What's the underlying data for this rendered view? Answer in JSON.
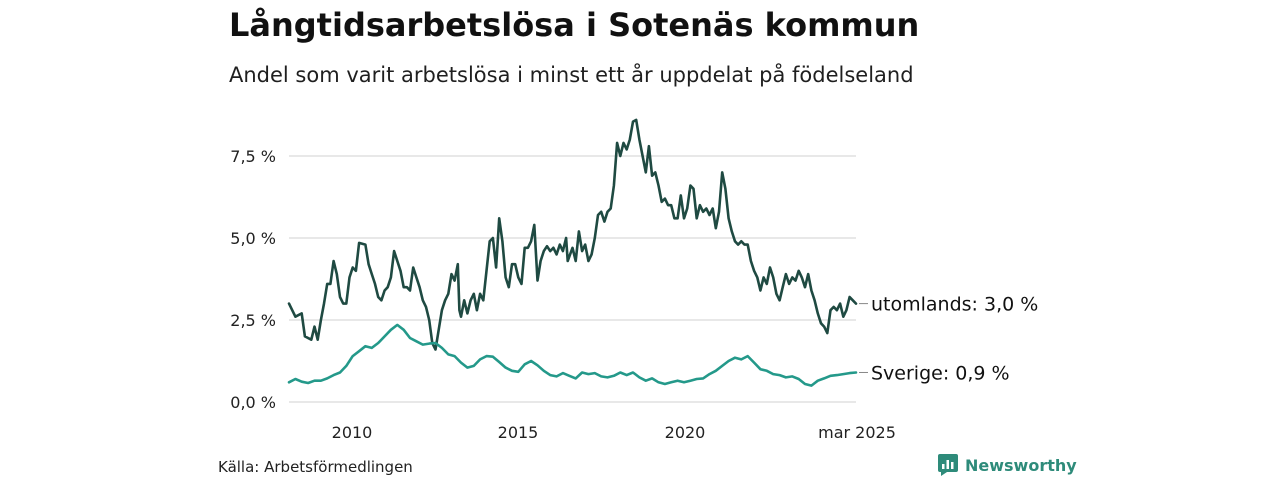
{
  "title": "Långtidsarbetslösa i Sotenäs kommun",
  "subtitle": "Andel som varit arbetslösa i minst ett år uppdelat på födelseland",
  "source": "Källa: Arbetsförmedlingen",
  "brand": "Newsworthy",
  "brand_icon": "newsworthy-bar-chart-icon",
  "chart_data": {
    "type": "line",
    "y_ticks": [
      {
        "value": 0,
        "label": "0,0 %"
      },
      {
        "value": 2.5,
        "label": "2,5 %"
      },
      {
        "value": 5,
        "label": "5,0 %"
      },
      {
        "value": 7.5,
        "label": "7,5 %"
      }
    ],
    "x_ticks": [
      {
        "value": 2010,
        "label": "2010"
      },
      {
        "value": 2015,
        "label": "2015"
      },
      {
        "value": 2020,
        "label": "2020"
      },
      {
        "value": 2025.2,
        "label": "mar 2025"
      }
    ],
    "xlim": [
      2008.0,
      2025.2
    ],
    "ylim": [
      0,
      8.6
    ],
    "grid": true,
    "series": [
      {
        "name": "utomlands",
        "end_label": "utomlands: 3,0 %",
        "color": "#1f4a42",
        "points": [
          [
            2008.0,
            3.0
          ],
          [
            2008.2,
            2.6
          ],
          [
            2008.4,
            2.7
          ],
          [
            2008.5,
            2.0
          ],
          [
            2008.7,
            1.9
          ],
          [
            2008.8,
            2.3
          ],
          [
            2008.9,
            1.9
          ],
          [
            2009.0,
            2.5
          ],
          [
            2009.1,
            3.0
          ],
          [
            2009.2,
            3.6
          ],
          [
            2009.3,
            3.6
          ],
          [
            2009.4,
            4.3
          ],
          [
            2009.5,
            3.9
          ],
          [
            2009.6,
            3.2
          ],
          [
            2009.7,
            3.0
          ],
          [
            2009.8,
            3.0
          ],
          [
            2009.9,
            3.8
          ],
          [
            2010.0,
            4.1
          ],
          [
            2010.1,
            4.0
          ],
          [
            2010.2,
            4.85
          ],
          [
            2010.4,
            4.8
          ],
          [
            2010.5,
            4.2
          ],
          [
            2010.6,
            3.9
          ],
          [
            2010.7,
            3.6
          ],
          [
            2010.8,
            3.2
          ],
          [
            2010.9,
            3.1
          ],
          [
            2011.0,
            3.4
          ],
          [
            2011.1,
            3.5
          ],
          [
            2011.2,
            3.8
          ],
          [
            2011.3,
            4.6
          ],
          [
            2011.4,
            4.3
          ],
          [
            2011.5,
            4.0
          ],
          [
            2011.6,
            3.5
          ],
          [
            2011.7,
            3.5
          ],
          [
            2011.8,
            3.4
          ],
          [
            2011.9,
            4.1
          ],
          [
            2012.0,
            3.8
          ],
          [
            2012.1,
            3.5
          ],
          [
            2012.2,
            3.1
          ],
          [
            2012.3,
            2.9
          ],
          [
            2012.4,
            2.5
          ],
          [
            2012.5,
            1.8
          ],
          [
            2012.6,
            1.6
          ],
          [
            2012.7,
            2.2
          ],
          [
            2012.8,
            2.8
          ],
          [
            2012.9,
            3.1
          ],
          [
            2013.0,
            3.3
          ],
          [
            2013.1,
            3.9
          ],
          [
            2013.2,
            3.7
          ],
          [
            2013.3,
            4.2
          ],
          [
            2013.35,
            2.8
          ],
          [
            2013.4,
            2.6
          ],
          [
            2013.5,
            3.1
          ],
          [
            2013.6,
            2.7
          ],
          [
            2013.7,
            3.1
          ],
          [
            2013.8,
            3.3
          ],
          [
            2013.9,
            2.8
          ],
          [
            2014.0,
            3.3
          ],
          [
            2014.1,
            3.1
          ],
          [
            2014.2,
            4.0
          ],
          [
            2014.3,
            4.9
          ],
          [
            2014.4,
            5.0
          ],
          [
            2014.5,
            4.1
          ],
          [
            2014.6,
            5.6
          ],
          [
            2014.7,
            4.9
          ],
          [
            2014.8,
            3.8
          ],
          [
            2014.9,
            3.5
          ],
          [
            2015.0,
            4.2
          ],
          [
            2015.1,
            4.2
          ],
          [
            2015.2,
            3.8
          ],
          [
            2015.3,
            3.6
          ],
          [
            2015.4,
            4.7
          ],
          [
            2015.5,
            4.7
          ],
          [
            2015.6,
            4.9
          ],
          [
            2015.7,
            5.4
          ],
          [
            2015.8,
            3.7
          ],
          [
            2015.9,
            4.3
          ],
          [
            2016.0,
            4.6
          ],
          [
            2016.1,
            4.75
          ],
          [
            2016.2,
            4.6
          ],
          [
            2016.3,
            4.7
          ],
          [
            2016.4,
            4.5
          ],
          [
            2016.5,
            4.8
          ],
          [
            2016.6,
            4.6
          ],
          [
            2016.7,
            5.0
          ],
          [
            2016.75,
            4.3
          ],
          [
            2016.9,
            4.7
          ],
          [
            2017.0,
            4.3
          ],
          [
            2017.1,
            5.2
          ],
          [
            2017.2,
            4.6
          ],
          [
            2017.3,
            4.8
          ],
          [
            2017.4,
            4.3
          ],
          [
            2017.5,
            4.5
          ],
          [
            2017.6,
            5.0
          ],
          [
            2017.7,
            5.7
          ],
          [
            2017.8,
            5.8
          ],
          [
            2017.9,
            5.5
          ],
          [
            2018.0,
            5.8
          ],
          [
            2018.1,
            5.9
          ],
          [
            2018.2,
            6.6
          ],
          [
            2018.3,
            7.9
          ],
          [
            2018.4,
            7.5
          ],
          [
            2018.5,
            7.9
          ],
          [
            2018.6,
            7.7
          ],
          [
            2018.7,
            8.0
          ],
          [
            2018.8,
            8.55
          ],
          [
            2018.9,
            8.6
          ],
          [
            2019.0,
            8.0
          ],
          [
            2019.1,
            7.5
          ],
          [
            2019.2,
            7.0
          ],
          [
            2019.3,
            7.8
          ],
          [
            2019.4,
            6.9
          ],
          [
            2019.5,
            7.0
          ],
          [
            2019.6,
            6.6
          ],
          [
            2019.7,
            6.1
          ],
          [
            2019.8,
            6.2
          ],
          [
            2019.9,
            6.0
          ],
          [
            2020.0,
            6.0
          ],
          [
            2020.1,
            5.6
          ],
          [
            2020.2,
            5.6
          ],
          [
            2020.3,
            6.3
          ],
          [
            2020.4,
            5.6
          ],
          [
            2020.5,
            5.9
          ],
          [
            2020.6,
            6.6
          ],
          [
            2020.7,
            6.5
          ],
          [
            2020.8,
            5.6
          ],
          [
            2020.9,
            6.0
          ],
          [
            2021.0,
            5.8
          ],
          [
            2021.1,
            5.9
          ],
          [
            2021.2,
            5.7
          ],
          [
            2021.3,
            5.9
          ],
          [
            2021.4,
            5.3
          ],
          [
            2021.5,
            5.8
          ],
          [
            2021.6,
            7.0
          ],
          [
            2021.7,
            6.5
          ],
          [
            2021.8,
            5.6
          ],
          [
            2021.9,
            5.2
          ],
          [
            2022.0,
            4.9
          ],
          [
            2022.1,
            4.8
          ],
          [
            2022.2,
            4.9
          ],
          [
            2022.3,
            4.8
          ],
          [
            2022.4,
            4.8
          ],
          [
            2022.5,
            4.3
          ],
          [
            2022.6,
            4.0
          ],
          [
            2022.7,
            3.8
          ],
          [
            2022.8,
            3.4
          ],
          [
            2022.9,
            3.8
          ],
          [
            2023.0,
            3.6
          ],
          [
            2023.1,
            4.1
          ],
          [
            2023.2,
            3.8
          ],
          [
            2023.3,
            3.3
          ],
          [
            2023.4,
            3.1
          ],
          [
            2023.5,
            3.5
          ],
          [
            2023.6,
            3.9
          ],
          [
            2023.7,
            3.6
          ],
          [
            2023.8,
            3.8
          ],
          [
            2023.9,
            3.7
          ],
          [
            2024.0,
            4.0
          ],
          [
            2024.1,
            3.8
          ],
          [
            2024.2,
            3.5
          ],
          [
            2024.3,
            3.9
          ],
          [
            2024.4,
            3.4
          ],
          [
            2024.5,
            3.1
          ],
          [
            2024.6,
            2.7
          ],
          [
            2024.7,
            2.4
          ],
          [
            2024.8,
            2.3
          ],
          [
            2024.9,
            2.1
          ],
          [
            2025.0,
            2.8
          ],
          [
            2025.1,
            2.9
          ],
          [
            2025.2,
            2.8
          ],
          [
            2025.3,
            3.0
          ],
          [
            2025.4,
            2.6
          ],
          [
            2025.5,
            2.8
          ],
          [
            2025.6,
            3.2
          ],
          [
            2025.7,
            3.1
          ],
          [
            2025.8,
            3.0
          ]
        ]
      },
      {
        "name": "Sverige",
        "end_label": "Sverige: 0,9 %",
        "color": "#24998a",
        "points": [
          [
            2008.0,
            0.6
          ],
          [
            2008.2,
            0.7
          ],
          [
            2008.4,
            0.62
          ],
          [
            2008.6,
            0.58
          ],
          [
            2008.8,
            0.65
          ],
          [
            2009.0,
            0.65
          ],
          [
            2009.2,
            0.72
          ],
          [
            2009.4,
            0.82
          ],
          [
            2009.6,
            0.9
          ],
          [
            2009.8,
            1.1
          ],
          [
            2010.0,
            1.4
          ],
          [
            2010.2,
            1.55
          ],
          [
            2010.4,
            1.7
          ],
          [
            2010.6,
            1.65
          ],
          [
            2010.8,
            1.8
          ],
          [
            2011.0,
            2.0
          ],
          [
            2011.2,
            2.2
          ],
          [
            2011.4,
            2.35
          ],
          [
            2011.6,
            2.2
          ],
          [
            2011.8,
            1.95
          ],
          [
            2012.0,
            1.85
          ],
          [
            2012.2,
            1.75
          ],
          [
            2012.4,
            1.78
          ],
          [
            2012.6,
            1.8
          ],
          [
            2012.8,
            1.65
          ],
          [
            2013.0,
            1.45
          ],
          [
            2013.2,
            1.4
          ],
          [
            2013.4,
            1.2
          ],
          [
            2013.6,
            1.05
          ],
          [
            2013.8,
            1.1
          ],
          [
            2014.0,
            1.3
          ],
          [
            2014.2,
            1.4
          ],
          [
            2014.4,
            1.38
          ],
          [
            2014.6,
            1.22
          ],
          [
            2014.8,
            1.05
          ],
          [
            2015.0,
            0.95
          ],
          [
            2015.2,
            0.92
          ],
          [
            2015.4,
            1.15
          ],
          [
            2015.6,
            1.25
          ],
          [
            2015.8,
            1.12
          ],
          [
            2016.0,
            0.95
          ],
          [
            2016.2,
            0.82
          ],
          [
            2016.4,
            0.78
          ],
          [
            2016.6,
            0.88
          ],
          [
            2016.8,
            0.8
          ],
          [
            2017.0,
            0.72
          ],
          [
            2017.2,
            0.9
          ],
          [
            2017.4,
            0.85
          ],
          [
            2017.6,
            0.88
          ],
          [
            2017.8,
            0.78
          ],
          [
            2018.0,
            0.75
          ],
          [
            2018.2,
            0.8
          ],
          [
            2018.4,
            0.9
          ],
          [
            2018.6,
            0.82
          ],
          [
            2018.8,
            0.9
          ],
          [
            2019.0,
            0.75
          ],
          [
            2019.2,
            0.65
          ],
          [
            2019.4,
            0.72
          ],
          [
            2019.6,
            0.6
          ],
          [
            2019.8,
            0.55
          ],
          [
            2020.0,
            0.6
          ],
          [
            2020.2,
            0.65
          ],
          [
            2020.4,
            0.6
          ],
          [
            2020.6,
            0.65
          ],
          [
            2020.8,
            0.7
          ],
          [
            2021.0,
            0.72
          ],
          [
            2021.2,
            0.85
          ],
          [
            2021.4,
            0.95
          ],
          [
            2021.6,
            1.1
          ],
          [
            2021.8,
            1.25
          ],
          [
            2022.0,
            1.35
          ],
          [
            2022.2,
            1.3
          ],
          [
            2022.4,
            1.4
          ],
          [
            2022.6,
            1.2
          ],
          [
            2022.8,
            1.0
          ],
          [
            2023.0,
            0.95
          ],
          [
            2023.2,
            0.85
          ],
          [
            2023.4,
            0.82
          ],
          [
            2023.6,
            0.75
          ],
          [
            2023.8,
            0.78
          ],
          [
            2024.0,
            0.7
          ],
          [
            2024.2,
            0.55
          ],
          [
            2024.4,
            0.5
          ],
          [
            2024.6,
            0.65
          ],
          [
            2024.8,
            0.72
          ],
          [
            2025.0,
            0.8
          ],
          [
            2025.2,
            0.82
          ],
          [
            2025.4,
            0.85
          ],
          [
            2025.6,
            0.88
          ],
          [
            2025.8,
            0.9
          ]
        ]
      }
    ]
  }
}
